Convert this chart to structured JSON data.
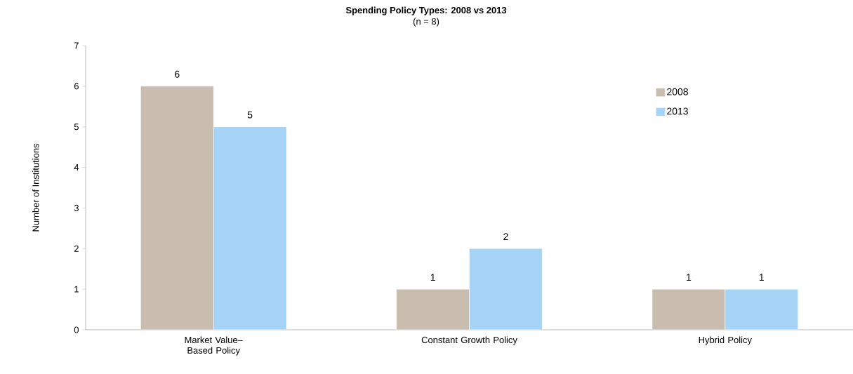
{
  "chart_data": {
    "type": "bar",
    "title": "Spending Policy Types: 2008 vs 2013",
    "subtitle": "(n = 8)",
    "ylabel": "Number of Institutions",
    "categories": [
      "Market Value–Based Policy",
      "Constant Growth Policy",
      "Hybrid Policy"
    ],
    "series": [
      {
        "name": "2008",
        "color": "#c9bdb0",
        "values": [
          6,
          1,
          1
        ]
      },
      {
        "name": "2013",
        "color": "#a6d4f7",
        "values": [
          5,
          2,
          1
        ]
      }
    ],
    "ylim": [
      0,
      7
    ],
    "yticks": [
      0,
      1,
      2,
      3,
      4,
      5,
      6,
      7
    ],
    "data_labels": true,
    "legend": "top right",
    "grid": false
  }
}
